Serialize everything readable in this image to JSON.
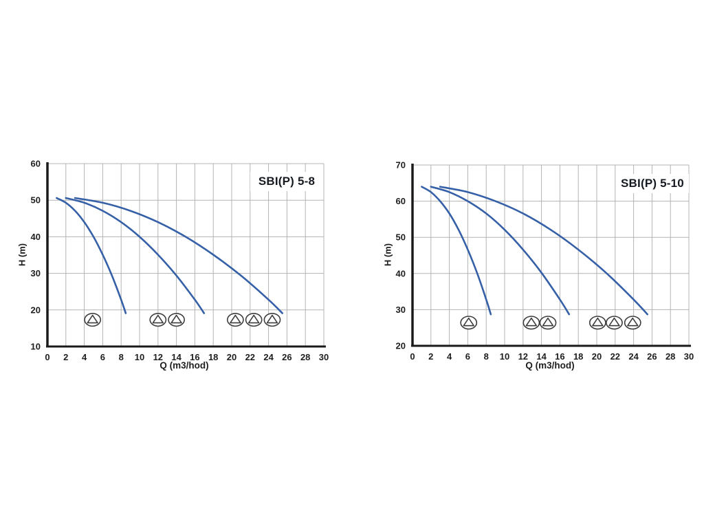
{
  "figure": {
    "background": "#ffffff"
  },
  "colors": {
    "curve_blue": "#3560a8",
    "grid": "#b3b3b3",
    "axis": "#1a1a1a",
    "tick_text": "#1e1e1e",
    "title_text": "#161a21",
    "pump_icon_outline": "#3c3c3c",
    "pump_icon_fill": "#ffffff"
  },
  "chart_data": [
    {
      "type": "line",
      "title": "SBI(P) 5-8",
      "xlabel": "Q (m3/hod)",
      "ylabel": "H (m)",
      "xlim": [
        0,
        30
      ],
      "ylim": [
        10,
        60
      ],
      "xticks": [
        0,
        2,
        4,
        6,
        8,
        10,
        12,
        14,
        16,
        18,
        20,
        22,
        24,
        26,
        28,
        30
      ],
      "yticks": [
        10,
        20,
        30,
        40,
        50,
        60
      ],
      "grid": true,
      "legend": "none",
      "line_color": "#3560a8",
      "series": [
        {
          "name": "1 pump",
          "points": [
            [
              1,
              50.6
            ],
            [
              2,
              49.3
            ],
            [
              3,
              47.1
            ],
            [
              4,
              44.0
            ],
            [
              5,
              40.0
            ],
            [
              6,
              35.1
            ],
            [
              7,
              29.4
            ],
            [
              8,
              22.8
            ],
            [
              8.5,
              19.1
            ]
          ]
        },
        {
          "name": "2 pumps",
          "points": [
            [
              2,
              50.6
            ],
            [
              4,
              49.3
            ],
            [
              6,
              47.1
            ],
            [
              8,
              44.0
            ],
            [
              10,
              40.0
            ],
            [
              12,
              35.1
            ],
            [
              14,
              29.4
            ],
            [
              16,
              22.8
            ],
            [
              17,
              19.1
            ]
          ]
        },
        {
          "name": "3 pumps",
          "points": [
            [
              3,
              50.6
            ],
            [
              6,
              49.3
            ],
            [
              9,
              47.1
            ],
            [
              12,
              44.0
            ],
            [
              15,
              40.0
            ],
            [
              18,
              35.1
            ],
            [
              21,
              29.4
            ],
            [
              24,
              22.8
            ],
            [
              25.5,
              19.1
            ]
          ]
        }
      ],
      "pump_icons": {
        "h_center": 17.3,
        "groups": [
          {
            "pumps": 1,
            "q_positions": [
              4.9
            ]
          },
          {
            "pumps": 2,
            "q_positions": [
              12.0,
              14.0
            ]
          },
          {
            "pumps": 3,
            "q_positions": [
              20.4,
              22.4,
              24.4
            ]
          }
        ]
      }
    },
    {
      "type": "line",
      "title": "SBI(P) 5-10",
      "xlabel": "Q (m3/hod)",
      "ylabel": "H (m)",
      "xlim": [
        0,
        30
      ],
      "ylim": [
        20,
        70
      ],
      "xticks": [
        0,
        2,
        4,
        6,
        8,
        10,
        12,
        14,
        16,
        18,
        20,
        22,
        24,
        26,
        28,
        30
      ],
      "yticks": [
        20,
        30,
        40,
        50,
        60,
        70
      ],
      "grid": true,
      "legend": "none",
      "line_color": "#3560a8",
      "series": [
        {
          "name": "1 pump",
          "points": [
            [
              1,
              64.0
            ],
            [
              2,
              62.5
            ],
            [
              3,
              60.0
            ],
            [
              4,
              56.6
            ],
            [
              5,
              52.1
            ],
            [
              6,
              46.6
            ],
            [
              7,
              40.2
            ],
            [
              8,
              32.8
            ],
            [
              8.5,
              28.7
            ]
          ]
        },
        {
          "name": "2 pumps",
          "points": [
            [
              2,
              64.0
            ],
            [
              4,
              62.5
            ],
            [
              6,
              60.0
            ],
            [
              8,
              56.6
            ],
            [
              10,
              52.1
            ],
            [
              12,
              46.6
            ],
            [
              14,
              40.2
            ],
            [
              16,
              32.8
            ],
            [
              17,
              28.7
            ]
          ]
        },
        {
          "name": "3 pumps",
          "points": [
            [
              3,
              64.0
            ],
            [
              6,
              62.5
            ],
            [
              9,
              60.0
            ],
            [
              12,
              56.6
            ],
            [
              15,
              52.1
            ],
            [
              18,
              46.6
            ],
            [
              21,
              40.2
            ],
            [
              24,
              32.8
            ],
            [
              25.5,
              28.7
            ]
          ]
        }
      ],
      "pump_icons": {
        "h_center": 26.4,
        "groups": [
          {
            "pumps": 1,
            "q_positions": [
              6.1
            ]
          },
          {
            "pumps": 2,
            "q_positions": [
              12.9,
              14.7
            ]
          },
          {
            "pumps": 3,
            "q_positions": [
              20.1,
              21.9,
              23.9
            ]
          }
        ]
      }
    }
  ]
}
